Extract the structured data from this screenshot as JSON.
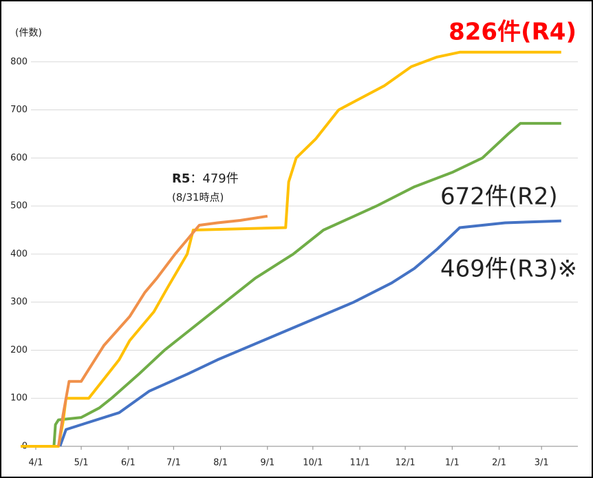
{
  "chart_data": {
    "type": "line",
    "y_label": "(件数)",
    "xlim": [
      -10,
      358
    ],
    "xticks": [
      {
        "value": 0,
        "label": "4/1"
      },
      {
        "value": 30,
        "label": "5/1"
      },
      {
        "value": 61,
        "label": "6/1"
      },
      {
        "value": 91,
        "label": "7/1"
      },
      {
        "value": 122,
        "label": "8/1"
      },
      {
        "value": 153,
        "label": "9/1"
      },
      {
        "value": 183,
        "label": "10/1"
      },
      {
        "value": 214,
        "label": "11/1"
      },
      {
        "value": 244,
        "label": "12/1"
      },
      {
        "value": 275,
        "label": "1/1"
      },
      {
        "value": 306,
        "label": "2/1"
      },
      {
        "value": 334,
        "label": "3/1"
      }
    ],
    "ylim": [
      0,
      900
    ],
    "yticks": [
      0,
      100,
      200,
      300,
      400,
      500,
      600,
      700,
      800
    ],
    "grid": true,
    "series": [
      {
        "label": [
          "R5",
          "：479件"
        ],
        "note": "(8/31時点)",
        "color": "#f0904a",
        "x": [
          15,
          18,
          22,
          30,
          33,
          45,
          62,
          72,
          80,
          92,
          100,
          108,
          120,
          135,
          153
        ],
        "values": [
          0,
          65,
          135,
          135,
          150,
          210,
          270,
          320,
          350,
          400,
          430,
          460,
          465,
          470,
          479
        ]
      },
      {
        "label": "826件(R4)",
        "color": "#ffc000",
        "x": [
          -10,
          15,
          18,
          20,
          35,
          55,
          62,
          78,
          87,
          100,
          104,
          165,
          167,
          172,
          185,
          200,
          212,
          230,
          248,
          265,
          280,
          347
        ],
        "values": [
          0,
          0,
          50,
          100,
          100,
          180,
          220,
          280,
          330,
          400,
          450,
          455,
          550,
          600,
          640,
          700,
          720,
          750,
          790,
          810,
          820,
          820
        ]
      },
      {
        "label": "672件(R2)",
        "color": "#70ad47",
        "x": [
          12,
          13,
          15,
          30,
          42,
          50,
          68,
          85,
          105,
          125,
          145,
          170,
          190,
          225,
          250,
          275,
          295,
          312,
          320,
          347
        ],
        "values": [
          0,
          45,
          55,
          60,
          80,
          100,
          150,
          200,
          250,
          300,
          350,
          400,
          450,
          500,
          540,
          570,
          600,
          650,
          672,
          672
        ]
      },
      {
        "label": "469件(R3)※",
        "color": "#4472c4",
        "x": [
          16,
          20,
          35,
          55,
          75,
          100,
          120,
          150,
          180,
          210,
          235,
          250,
          265,
          280,
          310,
          347
        ],
        "values": [
          0,
          35,
          50,
          70,
          115,
          150,
          180,
          220,
          260,
          300,
          340,
          370,
          410,
          455,
          465,
          469
        ]
      }
    ]
  }
}
